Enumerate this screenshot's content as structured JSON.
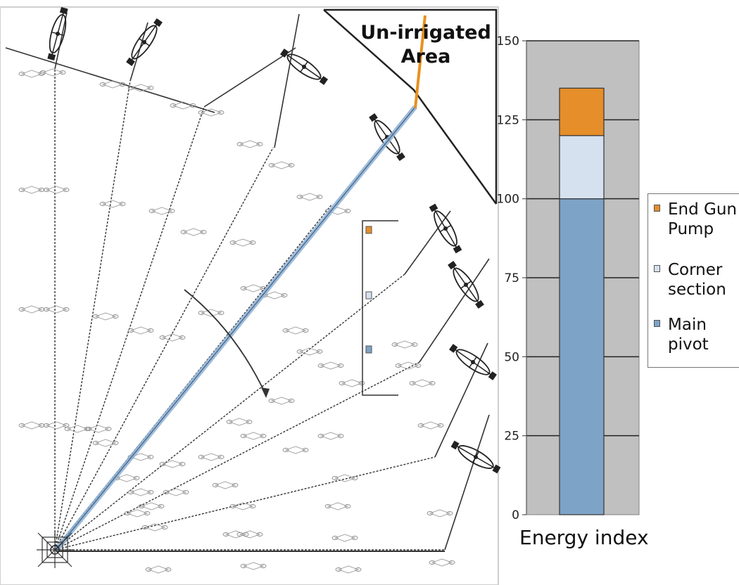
{
  "diagram": {
    "area_label": "Un-irrigated Area"
  },
  "chart_data": {
    "type": "bar",
    "stacked": true,
    "title": "",
    "categories": [
      "Energy index"
    ],
    "xlabel": "Energy index",
    "ylabel": "",
    "ylim": [
      0,
      150
    ],
    "yticks": [
      0,
      25,
      50,
      75,
      100,
      125,
      150
    ],
    "grid": true,
    "legend_position": "right",
    "series": [
      {
        "name": "Main pivot",
        "values": [
          100
        ],
        "color": "#7da3c7"
      },
      {
        "name": "Corner section",
        "values": [
          20
        ],
        "color": "#d5e1ee"
      },
      {
        "name": "End Gun Pump",
        "values": [
          15
        ],
        "color": "#e58e2a"
      }
    ],
    "legend": [
      {
        "label": "End Gun Pump",
        "color": "#e58e2a"
      },
      {
        "label": "Corner section",
        "color": "#d5e1ee"
      },
      {
        "label": "Main pivot",
        "color": "#7da3c7"
      }
    ]
  }
}
